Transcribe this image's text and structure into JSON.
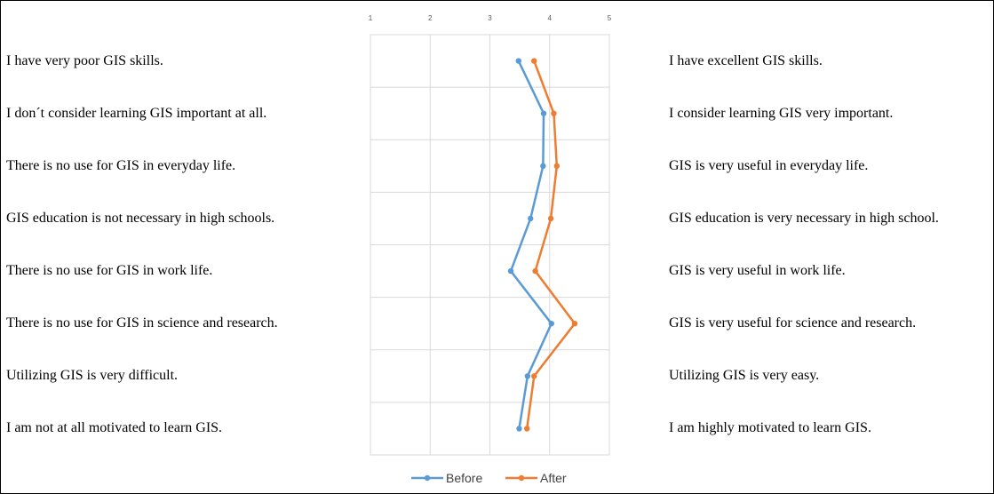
{
  "chart_data": {
    "type": "line",
    "orientation": "vertical-profile",
    "xlim": [
      1,
      5
    ],
    "x_ticks": [
      "1",
      "2",
      "3",
      "4",
      "5"
    ],
    "grid": true,
    "legend_position": "bottom",
    "categories_left": [
      "I have very poor GIS skills.",
      "I don´t consider learning GIS important at all.",
      "There is no use for GIS in everyday life.",
      "GIS education is not necessary in high schools.",
      "There is no use for GIS in work life.",
      "There is no use for GIS in science and research.",
      "Utilizing GIS is very difficult.",
      "I am not at all motivated to learn GIS."
    ],
    "categories_right": [
      "I have excellent GIS skills.",
      "I consider learning GIS very important.",
      "GIS is very useful in everyday life.",
      "GIS education is very necessary in high school.",
      "GIS is very useful in work life.",
      "GIS is very useful for science and research.",
      "Utilizing GIS is very easy.",
      "I am highly motivated to learn GIS."
    ],
    "series": [
      {
        "name": "Before",
        "color": "#5B9BD5",
        "values": [
          3.48,
          3.9,
          3.89,
          3.68,
          3.35,
          4.03,
          3.63,
          3.49
        ]
      },
      {
        "name": "After",
        "color": "#ED7D31",
        "values": [
          3.74,
          4.07,
          4.12,
          4.02,
          3.76,
          4.42,
          3.74,
          3.62
        ]
      }
    ]
  }
}
